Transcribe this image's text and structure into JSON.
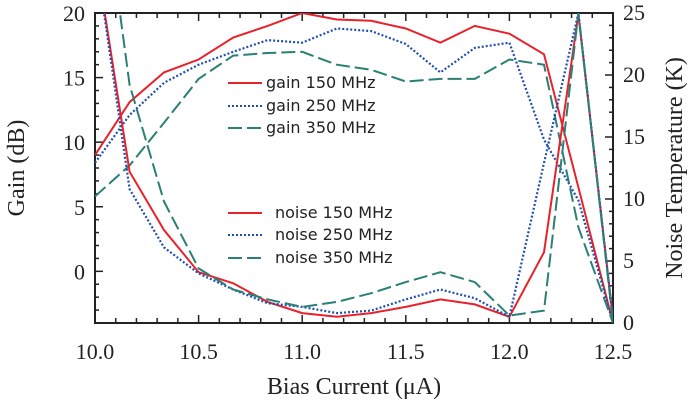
{
  "chart_data": {
    "type": "line",
    "xlabel": "Bias Current (μA)",
    "ylabel": "Gain (dB)",
    "y2label": "Noise Temperature (K)",
    "xlim": [
      10.0,
      12.5
    ],
    "ylim": [
      -4,
      20
    ],
    "y2lim": [
      0,
      25
    ],
    "x_ticks": [
      "10.0",
      "10.5",
      "11.0",
      "11.5",
      "12.0",
      "12.5"
    ],
    "y_ticks": [
      "20",
      "15",
      "10",
      "5",
      "0"
    ],
    "y2_ticks": [
      "25",
      "20",
      "15",
      "10",
      "5",
      "0"
    ],
    "grid": false,
    "x": [
      10.0,
      10.167,
      10.333,
      10.5,
      10.667,
      10.833,
      11.0,
      11.167,
      11.333,
      11.5,
      11.667,
      11.833,
      12.0,
      12.167,
      12.333,
      12.5
    ],
    "series": [
      {
        "name": "gain 150 MHz",
        "axis": "left",
        "color": "#e8222a",
        "style": "solid",
        "values": [
          9.0,
          13.1,
          15.4,
          16.4,
          18.1,
          19.0,
          20.0,
          19.5,
          19.4,
          18.8,
          17.7,
          19.0,
          18.4,
          16.8,
          6.5,
          -4.0
        ]
      },
      {
        "name": "gain 250 MHz",
        "axis": "left",
        "color": "#1f4fb0",
        "style": "dotted",
        "values": [
          8.4,
          12.1,
          14.6,
          16.0,
          17.0,
          17.9,
          17.7,
          18.8,
          18.6,
          17.6,
          15.4,
          17.3,
          17.7,
          10.2,
          5.5,
          -4.0
        ]
      },
      {
        "name": "gain 350 MHz",
        "axis": "left",
        "color": "#2a7f76",
        "style": "dashed",
        "values": [
          5.8,
          8.2,
          11.5,
          14.9,
          16.7,
          16.9,
          17.0,
          16.0,
          15.6,
          14.7,
          14.9,
          14.9,
          16.4,
          16.0,
          3.4,
          -4.0
        ]
      },
      {
        "name": "noise 150 MHz",
        "axis": "right",
        "color": "#e8222a",
        "style": "solid",
        "values": [
          30,
          12.2,
          7.5,
          4.1,
          3.2,
          1.7,
          0.8,
          0.5,
          0.8,
          1.3,
          1.9,
          1.5,
          0.5,
          5.7,
          24.9,
          0.3
        ]
      },
      {
        "name": "noise 250 MHz",
        "axis": "right",
        "color": "#1f4fb0",
        "style": "dotted",
        "values": [
          30,
          10.8,
          6.1,
          4.0,
          2.7,
          1.6,
          1.3,
          0.8,
          1.0,
          1.9,
          2.7,
          2.0,
          0.5,
          12.9,
          25.0,
          0.3
        ]
      },
      {
        "name": "noise 350 MHz",
        "axis": "right",
        "color": "#2a7f76",
        "style": "dashed",
        "values": [
          40,
          19.2,
          9.8,
          4.4,
          2.7,
          1.9,
          1.3,
          1.7,
          2.4,
          3.3,
          4.1,
          3.3,
          0.6,
          1.0,
          25.0,
          0.0
        ]
      }
    ]
  }
}
